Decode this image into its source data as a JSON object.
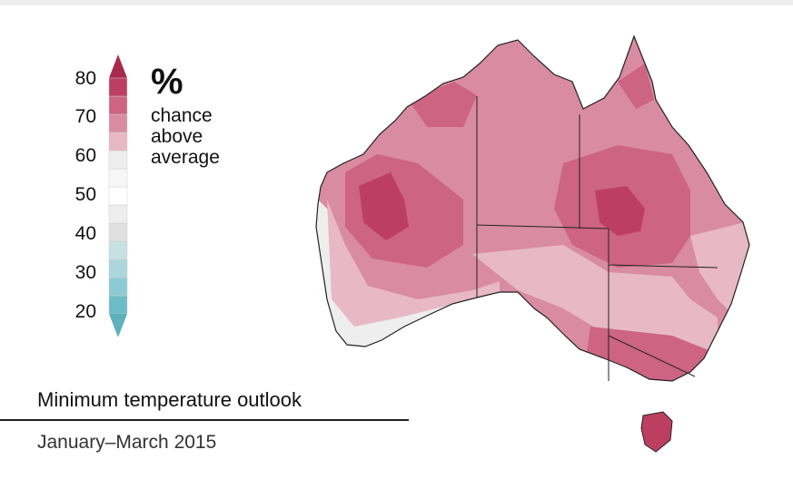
{
  "title": "Minimum temperature outlook",
  "subtitle": "January–March 2015",
  "legend": {
    "unit": "%",
    "caption_lines": [
      "chance",
      "above",
      "average"
    ],
    "ticks": [
      "80",
      "70",
      "60",
      "50",
      "40",
      "30",
      "20"
    ],
    "bands": [
      {
        "from": 20,
        "to": 25,
        "color": "#6cbcc8"
      },
      {
        "from": 25,
        "to": 30,
        "color": "#8ccbd3"
      },
      {
        "from": 30,
        "to": 35,
        "color": "#aad6dc"
      },
      {
        "from": 35,
        "to": 40,
        "color": "#c6e1e4"
      },
      {
        "from": 40,
        "to": 45,
        "color": "#e0e0e0"
      },
      {
        "from": 45,
        "to": 50,
        "color": "#eeeeee"
      },
      {
        "from": 50,
        "to": 55,
        "color": "#ffffff"
      },
      {
        "from": 55,
        "to": 60,
        "color": "#f7f7f7"
      },
      {
        "from": 60,
        "to": 65,
        "color": "#eeeeee"
      },
      {
        "from": 65,
        "to": 70,
        "color": "#e8b8c6"
      },
      {
        "from": 70,
        "to": 75,
        "color": "#d98ba1"
      },
      {
        "from": 75,
        "to": 80,
        "color": "#cc6482"
      },
      {
        "from": 80,
        "to": 85,
        "color": "#bc3f61"
      }
    ],
    "arrow_top_color": "#a82a4e",
    "arrow_bottom_color": "#5fb0bd"
  },
  "map": {
    "region": "Australia",
    "border_color": "#222222",
    "shading": [
      {
        "label": "cooler west coast fringe",
        "color": "#eeeeee"
      },
      {
        "label": "broad above-average interior",
        "color": "#d98ba1"
      },
      {
        "label": "strong signal western interior",
        "color": "#cc6482"
      },
      {
        "label": "strong signal Queensland",
        "color": "#bc3f61"
      }
    ]
  }
}
